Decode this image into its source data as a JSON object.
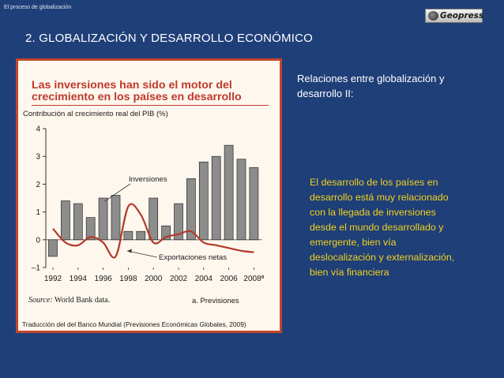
{
  "header": {
    "breadcrumb": "El proceso de globalización",
    "logo_text": "Geopress"
  },
  "slide": {
    "title": "2. GLOBALIZACIÓN Y DESARROLLO ECONÓMICO",
    "side_heading": "Relaciones entre globalización y desarrollo II:",
    "side_body": "El desarrollo de los países en desarrollo está muy relacionado con la llegada de inversiones desde el mundo desarrollado y emergente, bien vía deslocalización y externalización, bien vía financiera"
  },
  "figure": {
    "title_line1": "Las inversiones han sido el motor del",
    "title_line2": "crecimiento en los países en desarrollo",
    "source_label": "Source:",
    "source_text": " World Bank data.",
    "note": "a. Previsiones",
    "credit": "Traducción del del Banco Mundial (Previsiones Económicas Globales, 2009)",
    "colors": {
      "frame": "#c2472b",
      "title": "#c0392b",
      "bar": "#8c8c8c",
      "line": "#b23a2a",
      "background": "#fdf7ee"
    }
  },
  "chart_data": {
    "type": "bar",
    "title": "Las inversiones han sido el motor del crecimiento en los países en desarrollo",
    "ylabel": "Contribución al crecimiento real del PIB (%)",
    "ylim": [
      -1,
      4
    ],
    "yticks": [
      -1,
      0,
      1,
      2,
      3,
      4
    ],
    "x": [
      1992,
      1993,
      1994,
      1995,
      1996,
      1997,
      1998,
      1999,
      2000,
      2001,
      2002,
      2003,
      2004,
      2005,
      2006,
      2007,
      2008
    ],
    "xtick_labels": [
      "1992",
      "1994",
      "1996",
      "1998",
      "2000",
      "2002",
      "2004",
      "2006",
      "2008ª"
    ],
    "series": [
      {
        "name": "Inversiones",
        "type": "bar",
        "values": [
          -0.6,
          1.4,
          1.3,
          0.8,
          1.5,
          1.6,
          0.3,
          0.3,
          1.5,
          0.5,
          1.3,
          2.2,
          2.8,
          3.0,
          3.4,
          2.9,
          2.6
        ]
      },
      {
        "name": "Exportaciones netas",
        "type": "line",
        "values": [
          0.4,
          -0.1,
          -0.2,
          0.1,
          -0.1,
          -0.6,
          1.2,
          0.9,
          -0.1,
          0.1,
          0.2,
          0.3,
          -0.1,
          -0.2,
          -0.3,
          -0.4,
          -0.45
        ]
      }
    ],
    "annotations": [
      "Inversiones",
      "Exportaciones netas"
    ],
    "grid": false
  }
}
